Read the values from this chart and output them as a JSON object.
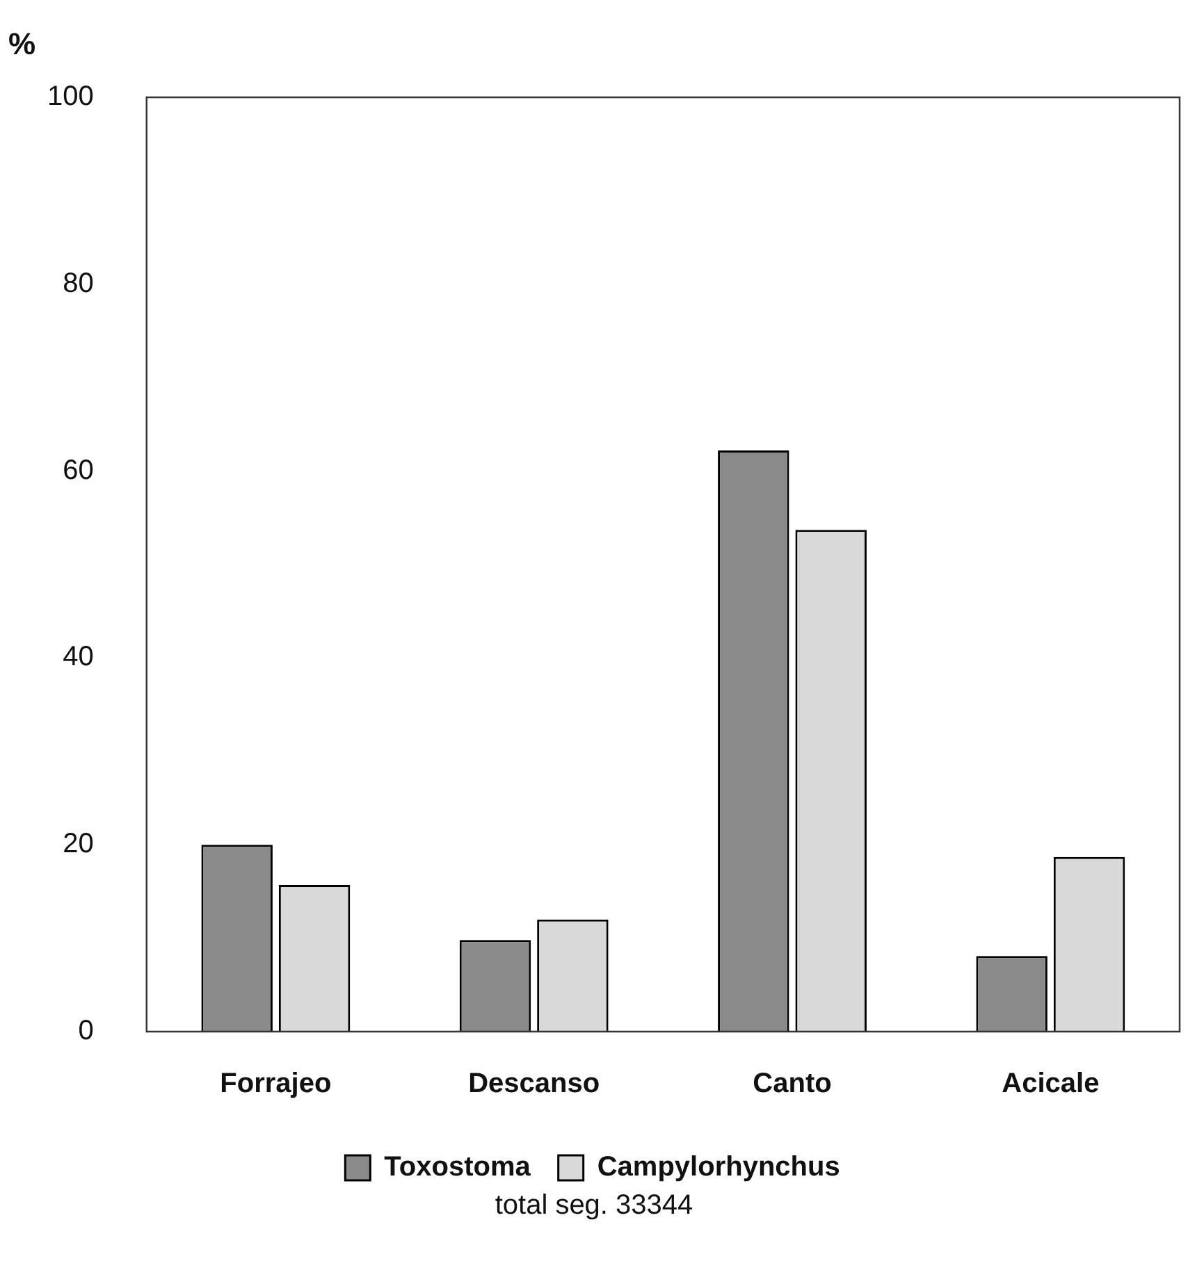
{
  "chart_data": {
    "type": "bar",
    "ylabel": "%",
    "categories": [
      "Forrajeo",
      "Descanso",
      "Canto",
      "Acicale"
    ],
    "series": [
      {
        "name": "Toxostoma",
        "color": "#8a8a8a",
        "values": [
          20.0,
          9.8,
          62.2,
          8.1
        ]
      },
      {
        "name": "Campylorhynchus",
        "color": "#d9d9d9",
        "values": [
          15.7,
          12.0,
          53.7,
          18.7
        ]
      }
    ],
    "ylim": [
      0,
      100
    ],
    "yticks": [
      0,
      20,
      40,
      60,
      80,
      100
    ],
    "grid": false,
    "legend": "bottom",
    "annotations": [
      "total seg. 33344"
    ]
  }
}
